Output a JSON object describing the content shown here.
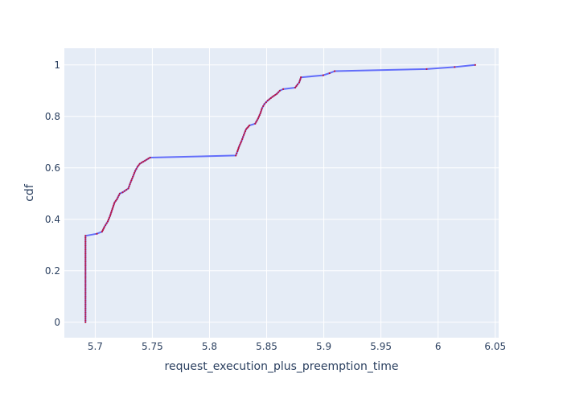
{
  "chart_data": {
    "type": "line",
    "title": "",
    "xlabel": "request_execution_plus_preemption_time",
    "ylabel": "cdf",
    "xlim": [
      5.673,
      6.053
    ],
    "ylim": [
      -0.06,
      1.065
    ],
    "xticks": [
      5.7,
      5.75,
      5.8,
      5.85,
      5.9,
      5.95,
      6,
      6.05
    ],
    "xtick_labels": [
      "5.7",
      "5.75",
      "5.8",
      "5.85",
      "5.9",
      "5.95",
      "6",
      "6.05"
    ],
    "yticks": [
      0,
      0.2,
      0.4,
      0.6,
      0.8,
      1
    ],
    "ytick_labels": [
      "0",
      "0.2",
      "0.4",
      "0.6",
      "0.8",
      "1"
    ],
    "grid": true,
    "colors": {
      "plot_bg": "#e5ecf6",
      "grid": "#ffffff",
      "line": "#636efa",
      "marker": "#c0143c",
      "text": "#2a3f5f"
    },
    "series": [
      {
        "x": [
          5.6915,
          5.6915,
          5.7015,
          5.706,
          5.708,
          5.711,
          5.713,
          5.715,
          5.717,
          5.719,
          5.7215,
          5.724,
          5.729,
          5.731,
          5.733,
          5.735,
          5.737,
          5.739,
          5.742,
          5.745,
          5.748,
          5.823,
          5.8245,
          5.826,
          5.828,
          5.83,
          5.832,
          5.835,
          5.84,
          5.8425,
          5.8445,
          5.846,
          5.848,
          5.851,
          5.855,
          5.859,
          5.8615,
          5.8645,
          5.875,
          5.877,
          5.8785,
          5.88,
          5.8995,
          5.905,
          5.9095,
          5.99,
          6.0145,
          6.0325
        ],
        "y": [
          0.0,
          0.336,
          0.344,
          0.352,
          0.37,
          0.392,
          0.413,
          0.44,
          0.466,
          0.478,
          0.5,
          0.505,
          0.52,
          0.544,
          0.566,
          0.588,
          0.604,
          0.616,
          0.624,
          0.632,
          0.64,
          0.648,
          0.665,
          0.684,
          0.704,
          0.728,
          0.75,
          0.765,
          0.772,
          0.792,
          0.812,
          0.832,
          0.848,
          0.862,
          0.876,
          0.888,
          0.9,
          0.906,
          0.912,
          0.924,
          0.932,
          0.952,
          0.96,
          0.968,
          0.976,
          0.984,
          0.992,
          1.0
        ]
      }
    ]
  }
}
